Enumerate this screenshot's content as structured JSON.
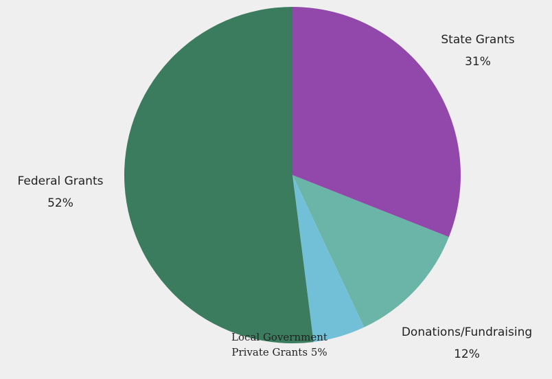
{
  "chart_data": {
    "type": "pie",
    "categories": [
      "State Grants",
      "Donations/Fundraising",
      "Local Government Private Grants",
      "Federal Grants"
    ],
    "values": [
      31,
      12,
      5,
      52
    ],
    "value_labels": [
      "31%",
      "12%",
      "5%",
      "52%"
    ],
    "colors": [
      "#9148aa",
      "#6bb5a8",
      "#72c0d8",
      "#3b7b5e"
    ]
  }
}
